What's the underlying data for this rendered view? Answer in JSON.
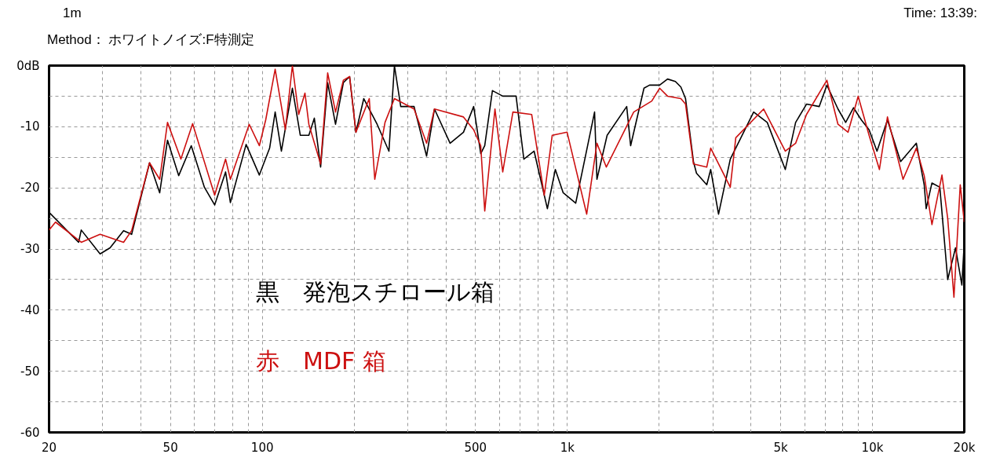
{
  "chart_data": {
    "type": "line",
    "annotations": [
      "1m",
      "Method： ホワイトノイズ:F特測定",
      "Time: 13:39:"
    ],
    "log": "x",
    "grid": true,
    "legend": "bottom",
    "xlim": [
      20,
      20000
    ],
    "xticks": [
      20,
      {
        "value": 30,
        "label": null
      },
      {
        "value": 40,
        "label": null
      },
      50,
      {
        "value": 60,
        "label": null
      },
      {
        "value": 70,
        "label": null
      },
      {
        "value": 80,
        "label": null
      },
      {
        "value": 90,
        "label": null
      },
      100,
      {
        "value": 200,
        "label": null
      },
      {
        "value": 300,
        "label": null
      },
      {
        "value": 400,
        "label": null
      },
      500,
      {
        "value": 600,
        "label": null
      },
      {
        "value": 700,
        "label": null
      },
      {
        "value": 800,
        "label": null
      },
      {
        "value": 900,
        "label": null
      },
      {
        "value": 1000,
        "label": "1k"
      },
      {
        "value": 2000,
        "label": null
      },
      {
        "value": 3000,
        "label": null
      },
      {
        "value": 4000,
        "label": null
      },
      {
        "value": 5000,
        "label": "5k"
      },
      {
        "value": 6000,
        "label": null
      },
      {
        "value": 7000,
        "label": null
      },
      {
        "value": 8000,
        "label": null
      },
      {
        "value": 9000,
        "label": null
      },
      {
        "value": 10000,
        "label": "10k"
      },
      {
        "value": 20000,
        "label": "20k"
      }
    ],
    "ylim": [
      -60,
      0
    ],
    "yticks": [
      {
        "value": 0,
        "label": "0dB"
      },
      {
        "value": -5,
        "label": null
      },
      -10,
      {
        "value": -15,
        "label": null
      },
      -20,
      {
        "value": -25,
        "label": null
      },
      -30,
      {
        "value": -35,
        "label": null
      },
      -40,
      {
        "value": -45,
        "label": null
      },
      -50,
      {
        "value": -55,
        "label": null
      },
      -60
    ],
    "series": [
      {
        "name": "黒　発泡スチロール箱",
        "color": "#000000",
        "x": [
          20,
          25.0,
          25.5,
          29.4,
          31.7,
          35.1,
          37.3,
          42.7,
          46.1,
          48.9,
          53.2,
          58.5,
          64.6,
          69.8,
          75.8,
          78.6,
          88.5,
          97.8,
          105.7,
          110.2,
          115.5,
          125.5,
          133.2,
          142.1,
          148.1,
          155.3,
          163.8,
          173.8,
          184.4,
          193.3,
          202.7,
          215.1,
          237.9,
          260.1,
          271.1,
          284.3,
          314.4,
          345.6,
          366.7,
          412.7,
          456.5,
          493,
          520,
          536,
          568,
          614,
          679,
          720,
          778,
          860,
          913,
          969,
          1065,
          1228,
          1250,
          1350,
          1565,
          1612,
          1783,
          1859,
          2006,
          2130,
          2260,
          2355,
          2440,
          2590,
          2650,
          2864,
          2950,
          3130,
          3420,
          4080,
          4520,
          5180,
          5600,
          6080,
          6690,
          7090,
          7710,
          8170,
          8670,
          9200,
          9750,
          10350,
          11200,
          12370,
          13930,
          14780,
          15000,
          15670,
          16630,
          17650,
          18720,
          19640,
          20000
        ],
        "values": [
          -24.0,
          -28.9,
          -26.9,
          -30.8,
          -29.8,
          -27.0,
          -27.6,
          -15.9,
          -20.8,
          -12.2,
          -18.0,
          -13.1,
          -19.9,
          -22.8,
          -17.4,
          -22.4,
          -12.9,
          -17.9,
          -13.5,
          -7.6,
          -14.0,
          -3.7,
          -11.4,
          -11.4,
          -8.6,
          -16.6,
          -2.8,
          -9.6,
          -2.8,
          -1.8,
          -10.9,
          -5.4,
          -9.6,
          -14.0,
          0,
          -6.7,
          -6.7,
          -14.8,
          -7.1,
          -12.7,
          -10.9,
          -6.7,
          -14.4,
          -13.1,
          -4.1,
          -5.0,
          -5.0,
          -15.3,
          -14.0,
          -23.4,
          -17.0,
          -20.8,
          -22.5,
          -7.6,
          -18.6,
          -11.4,
          -6.7,
          -13.1,
          -3.7,
          -3.2,
          -3.2,
          -2.2,
          -2.6,
          -3.5,
          -5.4,
          -15.7,
          -17.6,
          -19.5,
          -17.0,
          -24.3,
          -15.3,
          -7.6,
          -9.3,
          -17.0,
          -9.3,
          -6.3,
          -6.7,
          -3.2,
          -7.1,
          -9.3,
          -6.9,
          -8.9,
          -10.5,
          -14.0,
          -8.9,
          -15.7,
          -12.7,
          -19.5,
          -23.4,
          -19.2,
          -19.9,
          -35.0,
          -29.8,
          -35.9,
          -28.9
        ]
      },
      {
        "name": "赤　MDF 箱",
        "color": "#cc1010",
        "x": [
          20,
          21,
          25.5,
          29.4,
          35.1,
          37.3,
          42.7,
          46.1,
          48.9,
          54.1,
          59.1,
          69.8,
          75.8,
          78.6,
          90.6,
          97.8,
          102.6,
          110.2,
          119.0,
          125.5,
          131.6,
          138.0,
          142.1,
          155.3,
          163.8,
          173.8,
          184.4,
          193.3,
          202.7,
          224.2,
          233.7,
          252.5,
          271.1,
          314.4,
          345.6,
          366.7,
          456.5,
          493,
          520,
          536,
          579,
          614,
          663,
          764,
          840,
          892,
          998,
          1157,
          1250,
          1342,
          1650,
          1891,
          2006,
          2130,
          2355,
          2440,
          2590,
          2864,
          2950,
          3420,
          3565,
          4400,
          5180,
          5600,
          6080,
          7090,
          7710,
          8320,
          8980,
          9750,
          10540,
          11200,
          12600,
          13930,
          14780,
          15670,
          16900,
          17650,
          18500,
          19400,
          20000
        ],
        "values": [
          -26.9,
          -25.6,
          -28.9,
          -27.6,
          -28.9,
          -27.0,
          -15.9,
          -18.6,
          -9.3,
          -15.3,
          -9.5,
          -21.2,
          -15.3,
          -18.6,
          -9.6,
          -13.1,
          -8.9,
          -0.6,
          -10.5,
          0,
          -8.0,
          -4.5,
          -9.6,
          -16.1,
          -1.2,
          -7.6,
          -2.4,
          -1.8,
          -10.9,
          -5.4,
          -18.6,
          -9.3,
          -5.4,
          -7.1,
          -12.7,
          -7.1,
          -8.4,
          -10.5,
          -13.1,
          -23.8,
          -7.1,
          -17.4,
          -7.6,
          -8.0,
          -21.2,
          -11.4,
          -10.9,
          -24.3,
          -12.7,
          -16.6,
          -7.6,
          -5.8,
          -3.7,
          -5.0,
          -5.4,
          -6.3,
          -16.1,
          -16.6,
          -13.5,
          -19.9,
          -11.8,
          -7.1,
          -14.0,
          -12.7,
          -8.0,
          -2.4,
          -9.6,
          -10.9,
          -5.0,
          -11.4,
          -17.0,
          -8.4,
          -18.6,
          -13.5,
          -18.0,
          -26.0,
          -17.9,
          -25.0,
          -37.9,
          -19.5,
          -25.6
        ]
      }
    ]
  }
}
